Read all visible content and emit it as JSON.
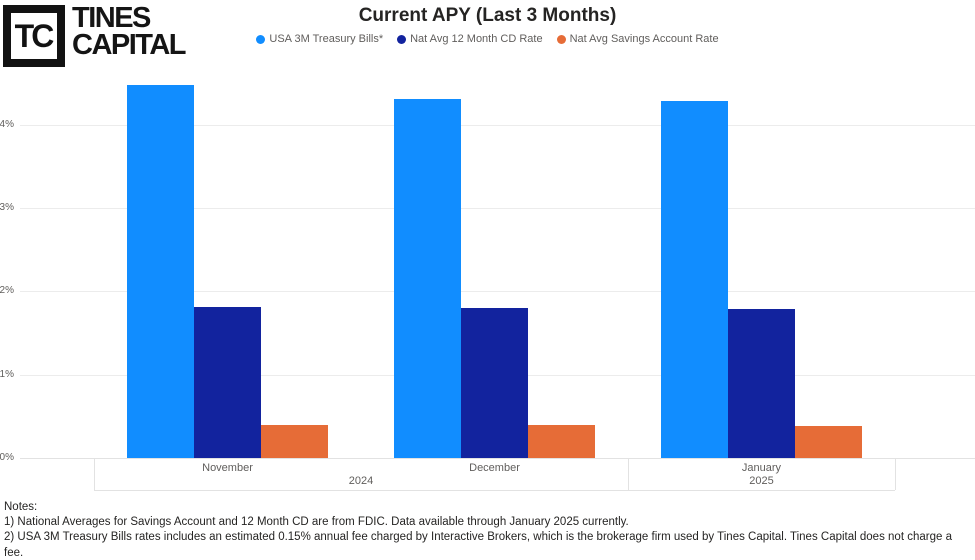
{
  "header": {
    "logo": {
      "monogram": "TC",
      "wordmark_line1": "TINES",
      "wordmark_line2": "CAPITAL"
    },
    "title": "Current APY (Last 3 Months)"
  },
  "chart_data": {
    "type": "bar",
    "title": "Current APY (Last 3 Months)",
    "categories": [
      "November",
      "December",
      "January"
    ],
    "category_groups": [
      {
        "label": "2024",
        "months": [
          "November",
          "December"
        ]
      },
      {
        "label": "2025",
        "months": [
          "January"
        ]
      }
    ],
    "series": [
      {
        "name": "USA 3M Treasury Bills*",
        "color": "#118DFF",
        "values": [
          4.48,
          4.31,
          4.28
        ]
      },
      {
        "name": "Nat Avg 12 Month CD Rate",
        "color": "#12239E",
        "values": [
          1.81,
          1.8,
          1.79
        ]
      },
      {
        "name": "Nat Avg Savings Account Rate",
        "color": "#E66C37",
        "values": [
          0.4,
          0.39,
          0.38
        ]
      }
    ],
    "ylabel": "",
    "xlabel": "",
    "ylim": [
      0,
      4.5
    ],
    "y_ticks": [
      "0%",
      "1%",
      "2%",
      "3%",
      "4%"
    ],
    "grid": true,
    "legend_position": "top"
  },
  "notes": {
    "heading": "Notes:",
    "lines": [
      "1) National Averages for Savings Account and 12 Month CD are from FDIC. Data available through January 2025 currently.",
      "2) USA 3M Treasury Bills rates includes an estimated 0.15% annual fee charged by Interactive Brokers, which is the brokerage firm used by Tines Capital. Tines Capital does not charge a fee."
    ]
  },
  "colors": {
    "series_treasury": "#118DFF",
    "series_cd": "#12239E",
    "series_savings": "#E66C37",
    "gridline": "#ECECEC",
    "axis_text": "#605E5C",
    "title_text": "#252423",
    "logo": "#121212"
  }
}
